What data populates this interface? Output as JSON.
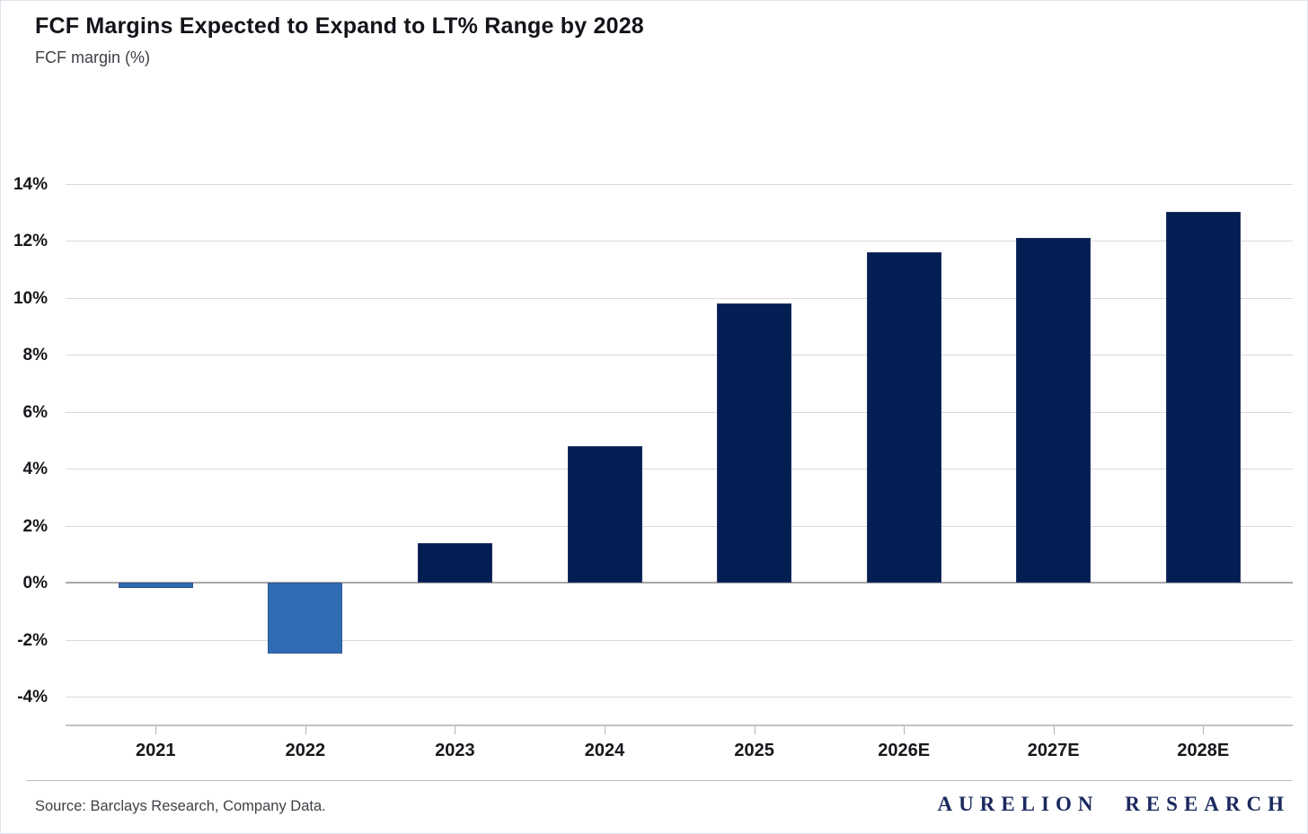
{
  "header": {
    "title": "FCF Margins Expected to Expand to LT% Range by 2028",
    "subtitle": "FCF margin (%)"
  },
  "chart_data": {
    "type": "bar",
    "title": "FCF Margins Expected to Expand to LT% Range by 2028",
    "subtitle": "FCF margin (%)",
    "categories": [
      "2021",
      "2022",
      "2023",
      "2024",
      "2025",
      "2026E",
      "2027E",
      "2028E"
    ],
    "values": [
      -0.2,
      -2.5,
      1.4,
      4.8,
      9.8,
      11.6,
      12.1,
      13.0
    ],
    "xlabel": "",
    "ylabel": "FCF margin (%)",
    "ylim": [
      -5,
      14.5
    ],
    "y_ticks": [
      14,
      12,
      10,
      8,
      6,
      4,
      2,
      0,
      -2,
      -4
    ],
    "y_tick_labels": [
      "14%",
      "12%",
      "10%",
      "8%",
      "6%",
      "4%",
      "2%",
      "0%",
      "-2%",
      "-4%"
    ],
    "grid": "horizontal",
    "legend": "none",
    "colors": {
      "positive_bar": "#021e52",
      "negative_bar": "#2e6cb4"
    }
  },
  "footer": {
    "source": "Source: Barclays Research, Company Data.",
    "brand": "AURELION RESEARCH"
  }
}
